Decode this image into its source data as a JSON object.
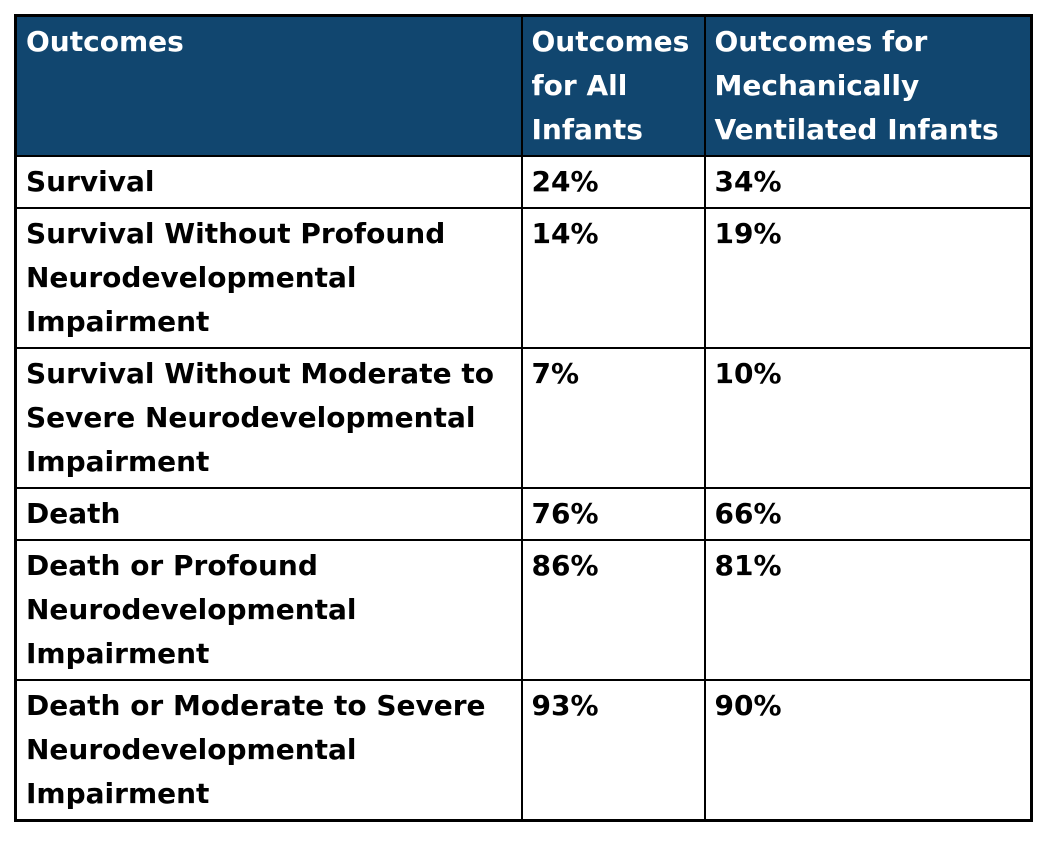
{
  "colors": {
    "header_bg": "#11466F",
    "header_text": "#FFFFFF",
    "body_text": "#000000",
    "border": "#000000",
    "body_bg": "#FFFFFF"
  },
  "table": {
    "columns": [
      "Outcomes",
      "Outcomes for All Infants",
      "Outcomes for Mechanically Ventilated Infants"
    ],
    "rows": [
      {
        "outcome": "Survival",
        "all_infants": "24%",
        "ventilated_infants": "34%"
      },
      {
        "outcome": "Survival Without Profound Neurodevelopmental Impairment",
        "all_infants": "14%",
        "ventilated_infants": "19%"
      },
      {
        "outcome": "Survival Without Moderate to Severe Neurodevelopmental Impairment",
        "all_infants": "7%",
        "ventilated_infants": "10%"
      },
      {
        "outcome": "Death",
        "all_infants": "76%",
        "ventilated_infants": "66%"
      },
      {
        "outcome": "Death or Profound Neurodevelopmental Impairment",
        "all_infants": "86%",
        "ventilated_infants": "81%"
      },
      {
        "outcome": "Death or Moderate to Severe Neurodevelopmental Impairment",
        "all_infants": "93%",
        "ventilated_infants": "90%"
      }
    ]
  }
}
